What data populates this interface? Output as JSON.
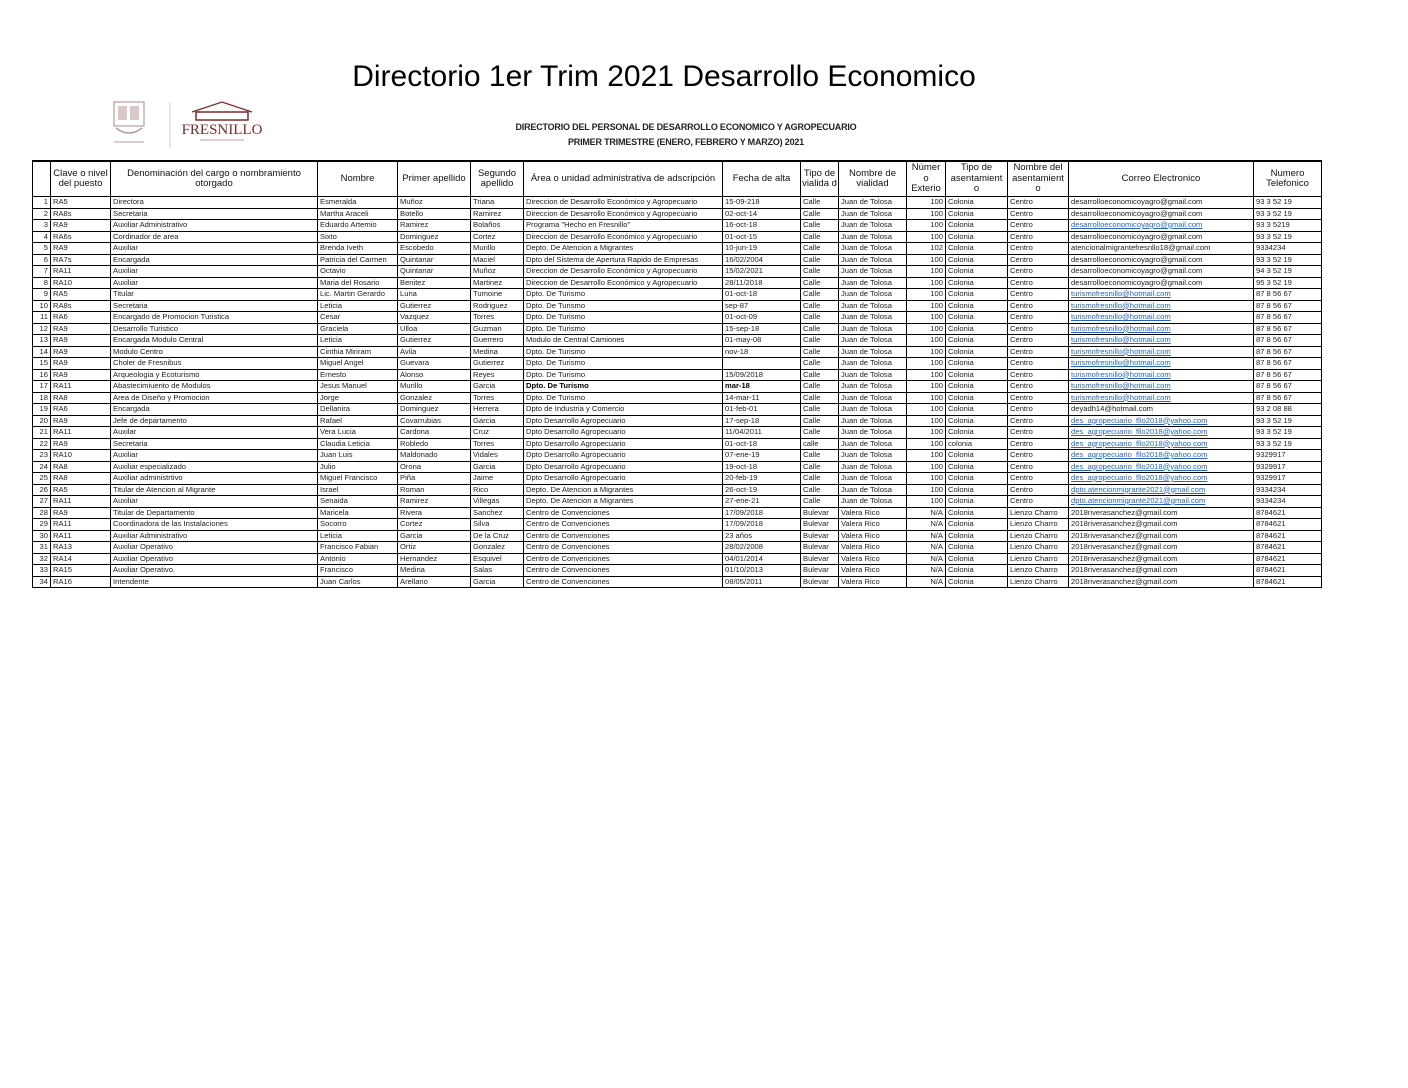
{
  "document": {
    "title": "Directorio 1er Trim 2021 Desarrollo Economico",
    "subtitle_line1": "DIRECTORIO DEL PERSONAL DE DESARROLLO ECONOMICO Y AGROPECUARIO",
    "subtitle_line2": "PRIMER TRIMESTRE  (ENERO, FEBRERO Y MARZO) 2021",
    "logo_text": "FRESNILLO",
    "link_color": "#2a66b8"
  },
  "table": {
    "headers": [
      "",
      "Clave o nivel del puesto",
      "Denominación del cargo o nombramiento otorgado",
      "Nombre",
      "Primer apellido",
      "Segundo apellido",
      "Área o unidad administrativa de adscripción",
      "Fecha de alta",
      "Tipo de vialida d",
      "Nombre de vialidad",
      "Númer o Exterio",
      "Tipo de asentamient o",
      "Nombre del asentamient o",
      "Correo Electronico",
      "Numero Telefonico"
    ],
    "rows": [
      [
        "1",
        "RA5",
        "Directora",
        "Esmeralda",
        "Muñoz",
        "Triana",
        "Direccion de Desarrollo Económico y Agropecuario",
        "15-09-218",
        "Calle",
        "Juan de Tolosa",
        "100",
        "Colonia",
        "Centro",
        "desarrolloeconomicoyagro@gmail.com",
        "93 3 52 19"
      ],
      [
        "2",
        "RA8s",
        "Secretaria",
        "Martha Araceli",
        "Botello",
        "Ramirez",
        "Direccion de Desarrollo Económico y Agropecuario",
        "02-oct-14",
        "Calle",
        "Juan de Tolosa",
        "100",
        "Colonia",
        "Centro",
        "desarrolloeconomicoyagro@gmail.com",
        "93 3 52 19"
      ],
      [
        "3",
        "RA9",
        "Auxiliar Administrativo",
        "Eduardo Artemio",
        "Ramirez",
        "Bolaños",
        "Programa \"Hecho en Fresnillo\"",
        "16-oct-18",
        "Calle",
        "Juan de Tolosa",
        "100",
        "Colonia",
        "Centro",
        "desarrolloeconomicoyagro@gmail.com",
        "93 3 5219"
      ],
      [
        "4",
        "RA6s",
        "Cordinador de area",
        "Sixto",
        "Dominguez",
        "Cortez",
        "Direccion de Desarrollo Económico y Agropecuario",
        "01-oct-15",
        "Calle",
        "Juan de Tolosa",
        "100",
        "Colonia",
        "Centro",
        "desarrolloeconomicoyagro@gmail.com",
        "93 3 52 19"
      ],
      [
        "5",
        "RA9",
        "Auxiliar",
        "Brenda Iveth",
        "Escobedo",
        "Murillo",
        "Depto. De Atencion a Migrantes",
        "10-jun-19",
        "Calle",
        "Juan de Tolosa",
        "102",
        "Colonia",
        "Centro",
        "atencionalmigrantefresnllo18@gmail.com",
        "9334234"
      ],
      [
        "6",
        "RA7s",
        "Encargada",
        "Patricia del Carmen",
        "Quintanar",
        "Maciel",
        "Dpto del Sistema de Apertura Rapido de Empresas",
        "16/02/2004",
        "Calle",
        "Juan de Tolosa",
        "100",
        "Colonia",
        "Centro",
        "desarrolloeconomicoyagro@gmail.com",
        "93 3 52 19"
      ],
      [
        "7",
        "RA11",
        "Auxiliar",
        "Octavio",
        "Quintanar",
        "Muñoz",
        "Direccion de Desarrollo Económico y Agropecuario",
        "15/02/2021",
        "Calle",
        "Juan de Tolosa",
        "100",
        "Colonia",
        "Centro",
        "desarrolloeconomicoyagro@gmail.com",
        "94 3 52 19"
      ],
      [
        "8",
        "RA10",
        "Auxiliar",
        "Maria del Rosario",
        "Benitez",
        "Martinez",
        "Direccion de Desarrollo Económico y Agropecuario",
        "28/11/2018",
        "Calle",
        "Juan de Tolosa",
        "100",
        "Colonia",
        "Centro",
        "desarrolloeconomicoyagro@gmail.com",
        "95 3 52 19"
      ],
      [
        "9",
        "RA5",
        "Titular",
        "Lic. Martin Gerardo",
        "Luna",
        "Tumoine",
        "Dpto. De Turismo",
        "01-oct-18",
        "Calle",
        "Juan de Tolosa",
        "100",
        "Colonia",
        "Centro",
        "turismofresnillo@hotmail.com",
        "87 8 56 67"
      ],
      [
        "10",
        "RA8s",
        "Secretaria",
        "Leticia",
        "Gutierrez",
        "Rodriguez",
        "Dpto. De Turismo",
        "sep-87",
        "Calle",
        "Juan de Tolosa",
        "100",
        "Colonia",
        "Centro",
        "turismofresnillo@hotmail.com",
        "87 8 56 67"
      ],
      [
        "11",
        "RA6",
        "Encargado de Promocion Turistica",
        "Cesar",
        "Vazquez",
        "Torres",
        "Dpto. De Turismo",
        "01-oct-09",
        "Calle",
        "Juan de Tolosa",
        "100",
        "Colonia",
        "Centro",
        "turismofresnillo@hotmail.com",
        "87 8 56 67"
      ],
      [
        "12",
        "RA9",
        "Desarrollo Turistico",
        "Graciela",
        "Ulloa",
        "Guzman",
        "Dpto. De Turismo",
        "15-sep-18",
        "Calle",
        "Juan de Tolosa",
        "100",
        "Colonia",
        "Centro",
        "turismofresnillo@hotmail.com",
        "87 8 56 67"
      ],
      [
        "13",
        "RA9",
        "Encargada Modulo Central",
        "Leticia",
        "Gutierrez",
        "Guerrero",
        "Modulo de Central Camiones",
        "01-may-08",
        "Calle",
        "Juan de Tolosa",
        "100",
        "Colonia",
        "Centro",
        "turismofresnillo@hotmail.com",
        "87 8 56 67"
      ],
      [
        "14",
        "RA9",
        "Modulo Centro",
        "Cinthia Miriram",
        "Avila",
        "Medina",
        "Dpto. De Turismo",
        "nov-18",
        "Calle",
        "Juan de Tolosa",
        "100",
        "Colonia",
        "Centro",
        "turismofresnillo@hotmail.com",
        "87 8 56 67"
      ],
      [
        "15",
        "RA9",
        "Choler de Fresnibus",
        "Miguel Angel",
        "Guevara",
        "Gutierrez",
        "Dpto. De Turismo",
        "",
        "Calle",
        "Juan de Tolosa",
        "100",
        "Colonia",
        "Centro",
        "turismofresnillo@hotmail.com",
        "87 8 56 67"
      ],
      [
        "16",
        "RA9",
        "Arqueologia y Ecoturismo",
        "Ernesto",
        "Alonso",
        "Reyes",
        "Dpto. De Turismo",
        "15/09/2018",
        "Calle",
        "Juan de Tolosa",
        "100",
        "Colonia",
        "Centro",
        "turismofresnillo@hotmail.com",
        "87 8 56 67"
      ],
      [
        "17",
        "RA11",
        "Abastecimiuento de Modulos",
        "Jesus Manuel",
        "Murillo",
        "Garcia",
        "Dpto. De Turismo",
        "mar-18",
        "Calle",
        "Juan de Tolosa",
        "100",
        "Colonia",
        "Centro",
        "turismofresnillo@hotmail.com",
        "87 8 56 67"
      ],
      [
        "18",
        "RA8",
        "Area de Diseño y Promocion",
        "Jorge",
        "Gonzalez",
        "Torres",
        "Dpto. De Turismo",
        "14-mar-11",
        "Calle",
        "Juan de Tolosa",
        "100",
        "Colonia",
        "Centro",
        "turismofresnillo@hotmail.com",
        "87 8 56 67"
      ],
      [
        "19",
        "RA6",
        "Encargada",
        "Dellanira",
        "Dominguez",
        "Herrera",
        "Dpto de Industria y Comercio",
        "01-feb-01",
        "Calle",
        "Juan de Tolosa",
        "100",
        "Colonia",
        "Centro",
        "deyadh14@hotmail.com",
        "93 2 08 88"
      ],
      [
        "20",
        "RA9",
        "Jefe de departamento",
        "Rafael",
        "Covarrubias",
        "Garcia",
        "Dpto Desarrollo Agropecuario",
        "17-sep-18",
        "Calle",
        "Juan de Tolosa",
        "100",
        "Colonia",
        "Centro",
        "des_agropecuario_fllo2018@yahoo.com",
        "93 3 52 19"
      ],
      [
        "21",
        "RA11",
        "Auxilar",
        "Vera Lucia",
        "Cardona",
        "Cruz",
        "Dpto Desarrollo Agropecuario",
        "11/04/2011",
        "Calle",
        "Juan de Tolosa",
        "100",
        "Colonia",
        "Centro",
        "des_agropecuario_fllo2018@yahoo.com",
        "93 3 52 19"
      ],
      [
        "22",
        "RA9",
        "Secretaria",
        "Claudia Leticia",
        "Robledo",
        "Torres",
        "Dpto Desarrollo Agropecuario",
        "01-oct-18",
        "calle",
        "Juan de Tolosa",
        "100",
        "colonia",
        "Centro",
        "des_agropecuario_fllo2018@yahoo.com",
        "93 3 52 19"
      ],
      [
        "23",
        "RA10",
        "Auxiliar",
        "Juan Luis",
        "Maldonado",
        "Vidales",
        "Dpto Desarrollo Agropecuario",
        "07-ene-19",
        "Calle",
        "Juan de Tolosa",
        "100",
        "Colonia",
        "Centro",
        "des_agropecuario_fllo2018@yahoo.com",
        "9329917"
      ],
      [
        "24",
        "RA8",
        "Auxiliar especializado",
        "Julio",
        "Orona",
        "Garcia",
        "Dpto Desarrollo Agropecuario",
        "19-oct-18",
        "Calle",
        "Juan de Tolosa",
        "100",
        "Colonia",
        "Centro",
        "des_agropecuario_fllo2018@yahoo.com",
        "9329917"
      ],
      [
        "25",
        "RA8",
        "Auxiliar administrtivo",
        "Miguel Francisco",
        "Piña",
        "Jaime",
        "Dpto Desarrollo Agropecuario",
        "20-feb-19",
        "Calle",
        "Juan de Tolosa",
        "100",
        "Colonia",
        "Centro",
        "des_agropecuario_fllo2018@yahoo.com",
        "9329917"
      ],
      [
        "26",
        "RA5",
        "Titular de Atencion al Migrante",
        "Israel",
        "Roman",
        "Rico",
        "Depto. De Atencion a Migrantes",
        "26-oct-19",
        "Calle",
        "Juan de Tolosa",
        "100",
        "Colonia",
        "Centro",
        "dpto.atencionmigrante2021@gmail.com",
        "9334234"
      ],
      [
        "27",
        "RA11",
        "Auxiliar",
        "Senaida",
        "Ramirez",
        "Villegas",
        "Depto. De Atencion a Migrantes",
        "27-ene-21",
        "Calle",
        "Juan de Tolosa",
        "100",
        "Colonia",
        "Centro",
        "dpto.atencionmigrante2021@gmail.com",
        "9334234"
      ],
      [
        "28",
        "RA9",
        "Titular de Departamento",
        "Maricela",
        "Rivera",
        "Sanchez",
        "Centro de Convenciones",
        "17/09/2018",
        "Bulevar",
        "Valera Rico",
        "N/A",
        "Colonia",
        "Lienzo Charro",
        "2018riverasanchez@gmail.com",
        "8784621"
      ],
      [
        "29",
        "RA11",
        "Coordinadora de las Instalaciones",
        "Socorro",
        "Cortez",
        "Silva",
        "Centro de Convenciones",
        "17/09/2018",
        "Bulevar",
        "Valera Rico",
        "N/A",
        "Colonia",
        "Lienzo Charro",
        "2018riverasanchez@gmail.com",
        "8784621"
      ],
      [
        "30",
        "RA11",
        "Auxiliar Administrativo",
        "Leticia",
        "Garcia",
        "De la Cruz",
        "Centro de Convenciones",
        "23 años",
        "Bulevar",
        "Valera Rico",
        "N/A",
        "Colonia",
        "Lienzo Charro",
        "2018riverasanchez@gmail.com",
        "8784621"
      ],
      [
        "31",
        "RA13",
        "Auxiliar Operativo",
        "Francisco Fabian",
        "Ortiz",
        "Gonzalez",
        "Centro de Convenciones",
        "28/02/2008",
        "Bulevar",
        "Valera Rico",
        "N/A",
        "Colonia",
        "Lienzo Charro",
        "2018riverasanchez@gmail.com",
        "8784621"
      ],
      [
        "32",
        "RA14",
        "Auxiliar Operativo",
        "Antonio",
        "Hernandez",
        "Esquivel",
        "Centro de Convenciones",
        "04/01/2014",
        "Bulevar",
        "Valera Rico",
        "N/A",
        "Colonia",
        "Lienzo Charro",
        "2018riverasanchez@gmail.com",
        "8784621"
      ],
      [
        "33",
        "RA15",
        "Auxiliar Operativo.",
        "Francisco",
        "Medina",
        "Salas",
        "Centro de Convenciones",
        "01/10/2013",
        "Bulevar",
        "Valera Rico",
        "N/A",
        "Colonia",
        "Lienzo Charro",
        "2018riverasanchez@gmail.com",
        "8784621"
      ],
      [
        "34",
        "RA16",
        "Intendente",
        "Juan Carlos",
        "Arellano",
        "Garcia",
        "Centro de Convenciones",
        "08/05/2011",
        "Bulevar",
        "Valera Rico",
        "N/A",
        "Colonia",
        "Lienzo Charro",
        "2018riverasanchez@gmail.com",
        "8784621"
      ]
    ],
    "linked_email_rows": [
      3,
      9,
      10,
      11,
      12,
      13,
      14,
      15,
      16,
      17,
      18,
      20,
      21,
      22,
      23,
      24,
      25,
      26,
      27
    ],
    "bold_rows": [
      17
    ]
  }
}
